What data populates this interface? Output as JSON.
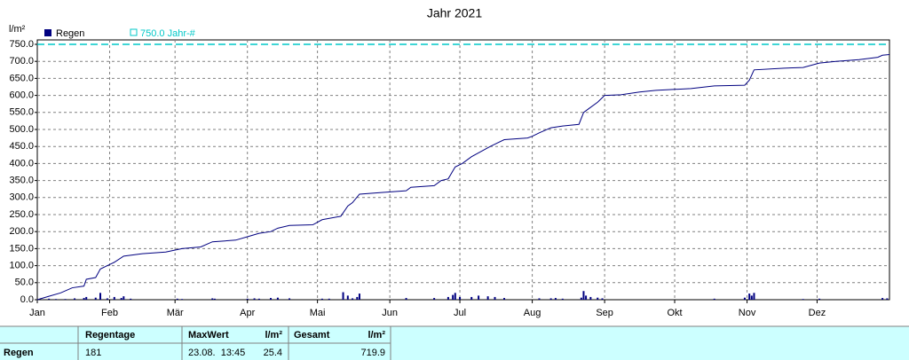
{
  "chart_data": {
    "type": "bar",
    "title": "Jahr 2021",
    "y_label": "l/m²",
    "xlim": [
      0,
      365
    ],
    "xticks": [
      {
        "value": 0,
        "label": "Jan"
      },
      {
        "value": 31,
        "label": "Feb"
      },
      {
        "value": 59,
        "label": "Mär"
      },
      {
        "value": 90,
        "label": "Apr"
      },
      {
        "value": 120,
        "label": "Mai"
      },
      {
        "value": 151,
        "label": "Jun"
      },
      {
        "value": 181,
        "label": "Jul"
      },
      {
        "value": 212,
        "label": "Aug"
      },
      {
        "value": 243,
        "label": "Sep"
      },
      {
        "value": 273,
        "label": "Okt"
      },
      {
        "value": 304,
        "label": "Nov"
      },
      {
        "value": 334,
        "label": "Dez"
      }
    ],
    "ylim": [
      0,
      750
    ],
    "yticks": [
      {
        "value": 0,
        "label": "0.0"
      },
      {
        "value": 50,
        "label": "50.0"
      },
      {
        "value": 100,
        "label": "100.0"
      },
      {
        "value": 150,
        "label": "150.0"
      },
      {
        "value": 200,
        "label": "200.0"
      },
      {
        "value": 250,
        "label": "250.0"
      },
      {
        "value": 300,
        "label": "300.0"
      },
      {
        "value": 350,
        "label": "350.0"
      },
      {
        "value": 400,
        "label": "400.0"
      },
      {
        "value": 450,
        "label": "450.0"
      },
      {
        "value": 500,
        "label": "500.0"
      },
      {
        "value": 550,
        "label": "550.0"
      },
      {
        "value": 600,
        "label": "600.0"
      },
      {
        "value": 650,
        "label": "650.0"
      },
      {
        "value": 700,
        "label": "700.0"
      },
      {
        "value": 750,
        "label": "750.0"
      }
    ],
    "grid": true,
    "target": {
      "name": "750.0 Jahr-#",
      "value": 750,
      "color": "#00c8c8"
    },
    "series": [
      {
        "name": "Regen",
        "type": "bar",
        "color": "#000080",
        "x": [
          5,
          8,
          12,
          16,
          20,
          21,
          25,
          27,
          30,
          33,
          36,
          37,
          40,
          60,
          62,
          75,
          76,
          90,
          93,
          95,
          100,
          103,
          108,
          122,
          125,
          131,
          133,
          135,
          137,
          138,
          158,
          170,
          176,
          178,
          179,
          181,
          186,
          189,
          193,
          196,
          200,
          215,
          220,
          222,
          225,
          233,
          234,
          235,
          237,
          240,
          242,
          290,
          303,
          305,
          306,
          307,
          328,
          335,
          362,
          364
        ],
        "values": [
          3,
          2,
          2,
          4,
          5,
          8,
          6,
          20,
          4,
          8,
          5,
          10,
          3,
          3,
          2,
          4,
          3,
          3,
          4,
          3,
          5,
          6,
          4,
          3,
          3,
          22,
          12,
          4,
          8,
          18,
          5,
          5,
          8,
          14,
          20,
          8,
          8,
          12,
          10,
          8,
          5,
          4,
          4,
          5,
          3,
          6,
          25.4,
          12,
          8,
          6,
          4,
          3,
          6,
          18,
          12,
          20,
          2,
          3,
          5,
          4
        ]
      },
      {
        "type": "line",
        "color": "#000080",
        "x": [
          0,
          5,
          10,
          15,
          20,
          21,
          25,
          27,
          30,
          33,
          37,
          45,
          55,
          62,
          70,
          75,
          85,
          90,
          95,
          100,
          103,
          108,
          118,
          122,
          130,
          133,
          135,
          138,
          148,
          158,
          160,
          170,
          173,
          176,
          179,
          182,
          186,
          190,
          194,
          197,
          200,
          210,
          212,
          215,
          220,
          225,
          232,
          234,
          236,
          240,
          243,
          250,
          258,
          265,
          280,
          290,
          303,
          305,
          307,
          320,
          328,
          335,
          342,
          352,
          360,
          362,
          365
        ],
        "values": [
          0,
          10,
          20,
          35,
          40,
          60,
          65,
          90,
          100,
          110,
          128,
          135,
          140,
          150,
          155,
          170,
          175,
          185,
          195,
          200,
          210,
          218,
          220,
          235,
          245,
          275,
          285,
          310,
          315,
          320,
          330,
          335,
          350,
          355,
          390,
          400,
          420,
          435,
          450,
          460,
          470,
          475,
          480,
          490,
          505,
          510,
          515,
          550,
          560,
          580,
          600,
          602,
          610,
          615,
          620,
          628,
          630,
          645,
          675,
          680,
          682,
          695,
          700,
          705,
          712,
          718,
          719.9
        ]
      }
    ]
  },
  "table": {
    "label": "Regen",
    "cells": [
      {
        "header": "Regentage",
        "value": 181
      },
      {
        "header": "MaxWert",
        "value": "23.08.  13:45"
      },
      {
        "header": "l/m²",
        "value": 25.4
      },
      {
        "header": "Gesamt"
      },
      {
        "header": "l/m²",
        "value": 719.9
      }
    ]
  }
}
